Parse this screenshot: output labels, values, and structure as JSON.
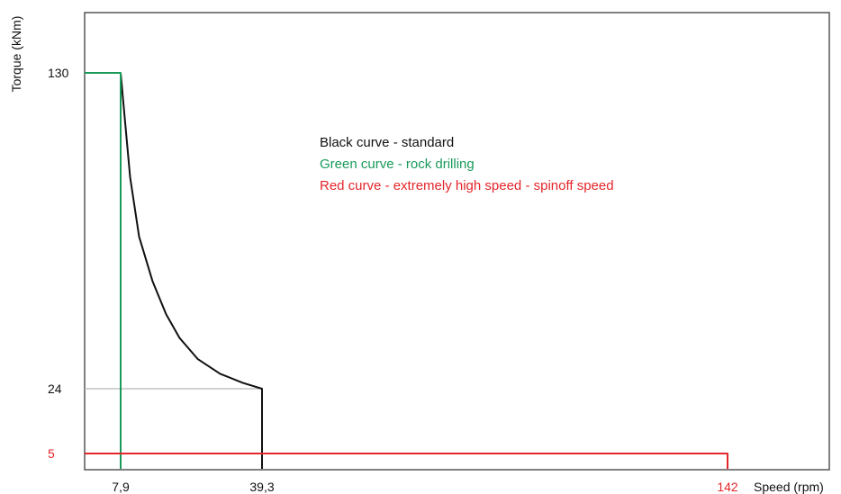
{
  "chart_data": {
    "type": "line",
    "xlabel": "Speed (rpm)",
    "ylabel": "Torque (kNm)",
    "x_ticks": [
      {
        "value": 7.9,
        "label": "7,9",
        "color": "#111111"
      },
      {
        "value": 39.3,
        "label": "39,3",
        "color": "#111111"
      },
      {
        "value": 142,
        "label": "142",
        "color": "#e3262b"
      }
    ],
    "y_ticks": [
      {
        "value": 130,
        "label": "130",
        "color": "#111111"
      },
      {
        "value": 24,
        "label": "24",
        "color": "#111111"
      },
      {
        "value": 5,
        "label": "5",
        "color": "#e3262b"
      }
    ],
    "series": [
      {
        "name": "Black curve - standard",
        "color": "#111111",
        "points": [
          [
            7.9,
            130
          ],
          [
            10,
            95
          ],
          [
            12,
            75
          ],
          [
            15,
            60
          ],
          [
            18,
            49
          ],
          [
            21,
            41
          ],
          [
            25,
            34
          ],
          [
            30,
            29
          ],
          [
            35,
            26
          ],
          [
            39.3,
            24
          ],
          [
            39.3,
            0
          ]
        ]
      },
      {
        "name": "Green curve - rock drilling",
        "color": "#1a9a5a",
        "points": [
          [
            0,
            130
          ],
          [
            7.9,
            130
          ],
          [
            7.9,
            0
          ]
        ]
      },
      {
        "name": "Red curve - extremely high speed - spinoff speed",
        "color": "#e3262b",
        "points": [
          [
            0,
            5
          ],
          [
            142,
            5
          ],
          [
            142,
            0
          ]
        ]
      }
    ],
    "legend": [
      {
        "text": "Black curve - standard",
        "color": "#111111"
      },
      {
        "text": "Green curve - rock drilling",
        "color": "#1a9a5a"
      },
      {
        "text": "Red curve - extremely high speed - spinoff speed",
        "color": "#e3262b"
      }
    ],
    "legend_position": "top-center"
  }
}
